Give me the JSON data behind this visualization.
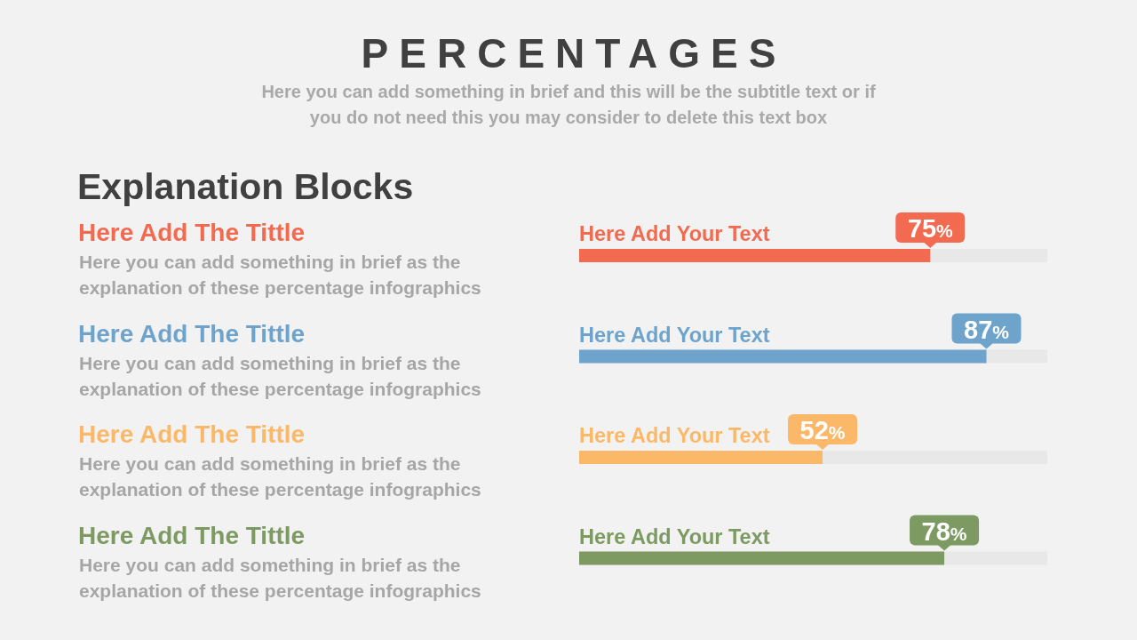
{
  "chart_data": {
    "type": "bar",
    "orientation": "horizontal",
    "title": "PERCENTAGES",
    "subtitle": "Here you can add something in brief and this will be the subtitle text or if you do not need this you may consider to delete this text box",
    "annotations": [
      "Explanation Blocks",
      "Here Add The Tittle",
      "Here you can add something in brief as the explanation of these percentage infographics",
      "Here Add The Tittle",
      "Here you can add something in brief as the explanation of these percentage infographics",
      "Here Add The Tittle",
      "Here you can add something in brief as the explanation of these percentage infographics",
      "Here Add The Tittle",
      "Here you can add something in brief as the explanation of these percentage infographics"
    ],
    "categories": [
      "Here Add Your Text",
      "Here Add Your Text",
      "Here Add Your Text",
      "Here Add Your Text"
    ],
    "values": [
      75,
      87,
      52,
      78
    ],
    "value_labels": [
      "75%",
      "87%",
      "52%",
      "78%"
    ],
    "colors": [
      "#f26a4f",
      "#6ea3cb",
      "#fbb869",
      "#7c9a61"
    ],
    "tick_labels": "y"
  }
}
